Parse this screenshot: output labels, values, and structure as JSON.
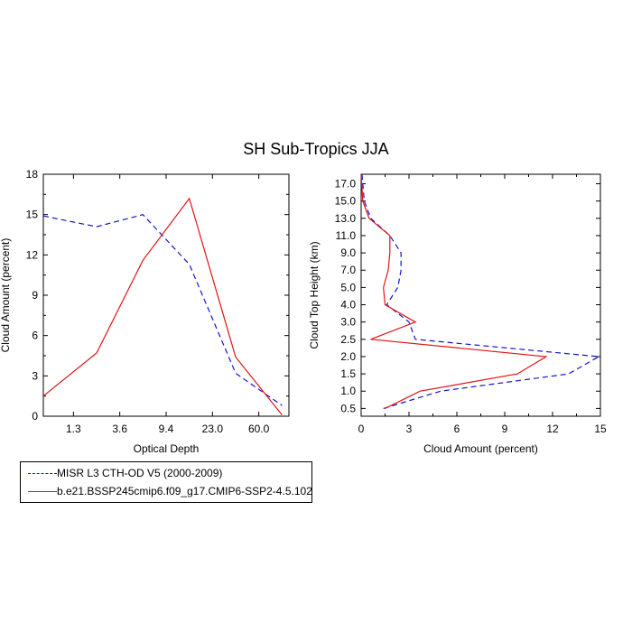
{
  "title": "SH Sub-Tropics JJA",
  "colors": {
    "obs": "#1414d2",
    "model": "#e01414"
  },
  "legend": {
    "obs": "MISR L3 CTH-OD V5 (2000-2009)",
    "model": "b.e21.BSSP245cmip6.f09_g17.CMIP6-SSP2-4.5.102"
  },
  "chart_data": [
    {
      "type": "line",
      "xlabel": "Optical Depth",
      "ylabel": "Cloud Amount (percent)",
      "x_tick_labels": [
        "1.3",
        "3.6",
        "9.4",
        "23.0",
        "60.0"
      ],
      "x_tick_positions": [
        1,
        2,
        3,
        4,
        5
      ],
      "xlim": [
        0.35,
        5.65
      ],
      "ylim": [
        0,
        18
      ],
      "y_ticks": [
        0,
        3,
        6,
        9,
        12,
        15,
        18
      ],
      "series": [
        {
          "name": "MISR L3 CTH-OD V5 (2000-2009)",
          "role": "obs",
          "style": "dashed",
          "x": [
            0.35,
            1.5,
            2.5,
            3.5,
            4.5,
            5.5
          ],
          "y": [
            14.9,
            14.1,
            15.0,
            11.3,
            3.2,
            0.8
          ]
        },
        {
          "name": "b.e21.BSSP245cmip6.f09_g17.CMIP6-SSP2-4.5.102",
          "role": "model",
          "style": "solid",
          "x": [
            0.35,
            1.5,
            2.5,
            3.5,
            4.5,
            5.5
          ],
          "y": [
            1.5,
            4.7,
            11.6,
            16.2,
            4.4,
            0.1
          ]
        }
      ]
    },
    {
      "type": "line",
      "xlabel": "Cloud Amount (percent)",
      "ylabel": "Cloud Top Height (km)",
      "xlim": [
        0,
        15
      ],
      "x_ticks": [
        0,
        3,
        6,
        9,
        12,
        15
      ],
      "y_tick_labels": [
        "0.5",
        "1.0",
        "1.5",
        "2.0",
        "2.5",
        "3.0",
        "4.0",
        "5.0",
        "7.0",
        "9.0",
        "11.0",
        "13.0",
        "15.0",
        "17.0"
      ],
      "y_tick_positions": [
        1,
        2,
        3,
        4,
        5,
        6,
        7,
        8,
        9,
        10,
        11,
        12,
        13,
        14
      ],
      "ylim": [
        0.55,
        14.55
      ],
      "series": [
        {
          "name": "MISR L3 CTH-OD V5 (2000-2009)",
          "role": "obs",
          "style": "dashed",
          "x": [
            1.4,
            5.0,
            13.0,
            14.9,
            3.4,
            3.0,
            1.6,
            2.3,
            2.5,
            2.5,
            1.8,
            0.6,
            0.2,
            0.05
          ],
          "y": [
            1,
            2,
            3,
            4,
            5,
            6,
            7,
            8,
            9,
            10,
            11,
            12,
            13,
            14.55
          ]
        },
        {
          "name": "b.e21.BSSP245cmip6.f09_g17.CMIP6-SSP2-4.5.102",
          "role": "model",
          "style": "solid",
          "x": [
            1.5,
            3.7,
            9.8,
            11.6,
            0.6,
            3.4,
            1.5,
            1.4,
            1.7,
            1.8,
            1.8,
            0.5,
            0.1,
            0.0
          ],
          "y": [
            1,
            2,
            3,
            4,
            5,
            6,
            7,
            8,
            9,
            10,
            11,
            12,
            13,
            14.55
          ]
        }
      ]
    }
  ]
}
